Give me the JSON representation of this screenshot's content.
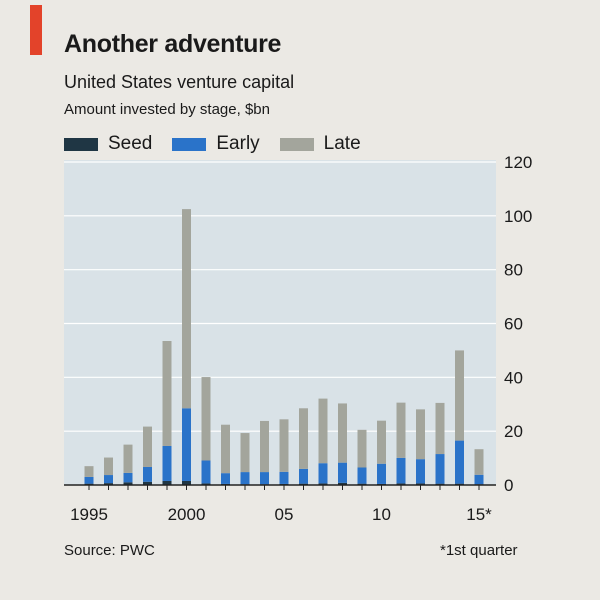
{
  "colors": {
    "accent": "#e3432a",
    "seed": "#1f3644",
    "early": "#2a73c9",
    "late": "#a3a59c",
    "plot_bg": "#d9e2e7",
    "grid": "#ffffff",
    "text": "#1a1a1a"
  },
  "header": {
    "title": "Another adventure",
    "subtitle": "United States venture capital",
    "units": "Amount invested by stage, $bn"
  },
  "legend": [
    {
      "label": "Seed",
      "color": "#1f3644"
    },
    {
      "label": "Early",
      "color": "#2a73c9"
    },
    {
      "label": "Late",
      "color": "#a3a59c"
    }
  ],
  "footer": {
    "source": "Source: PWC",
    "footnote": "*1st quarter"
  },
  "chart_data": {
    "type": "bar",
    "stacked": true,
    "title": "Another adventure",
    "subtitle": "United States venture capital",
    "ylabel": "Amount invested by stage, $bn",
    "ylim": [
      0,
      120
    ],
    "yticks": [
      0,
      20,
      40,
      60,
      80,
      100,
      120
    ],
    "y_axis_position": "right",
    "grid": true,
    "categories": [
      "1995",
      "1996",
      "1997",
      "1998",
      "1999",
      "2000",
      "2001",
      "2002",
      "2003",
      "2004",
      "2005",
      "2006",
      "2007",
      "2008",
      "2009",
      "2010",
      "2011",
      "2012",
      "2013",
      "2014",
      "2015"
    ],
    "xtick_labels": [
      {
        "category": "1995",
        "label": "1995"
      },
      {
        "category": "2000",
        "label": "2000"
      },
      {
        "category": "2005",
        "label": "05"
      },
      {
        "category": "2010",
        "label": "10"
      },
      {
        "category": "2015",
        "label": "15*"
      }
    ],
    "series": [
      {
        "name": "Seed",
        "values": [
          0.5,
          0.7,
          1.0,
          1.2,
          1.5,
          1.5,
          0.6,
          0.4,
          0.3,
          0.3,
          0.4,
          0.5,
          0.6,
          0.8,
          0.5,
          0.4,
          0.6,
          0.6,
          0.5,
          0.5,
          0.3
        ]
      },
      {
        "name": "Early",
        "values": [
          2.5,
          3.0,
          3.5,
          5.5,
          13.0,
          27.0,
          8.5,
          4.0,
          4.5,
          4.5,
          4.5,
          5.5,
          7.5,
          7.5,
          6.0,
          7.5,
          9.5,
          9.0,
          11.0,
          16.0,
          3.5
        ]
      },
      {
        "name": "Late",
        "values": [
          4.0,
          6.5,
          10.5,
          15.0,
          39.0,
          74.0,
          31.0,
          18.0,
          14.5,
          19.0,
          19.5,
          22.5,
          24.0,
          22.0,
          14.0,
          16.0,
          20.5,
          18.5,
          19.0,
          33.5,
          9.5
        ]
      }
    ]
  }
}
